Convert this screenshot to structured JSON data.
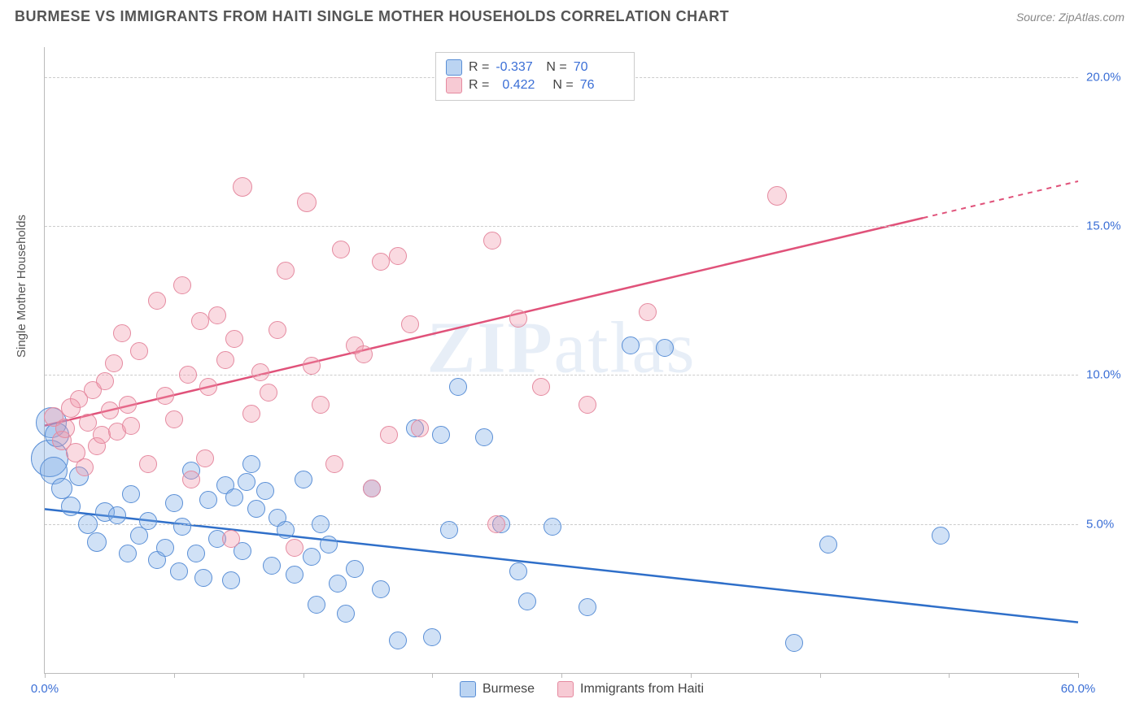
{
  "title": "BURMESE VS IMMIGRANTS FROM HAITI SINGLE MOTHER HOUSEHOLDS CORRELATION CHART",
  "source": "Source: ZipAtlas.com",
  "watermark_bold": "ZIP",
  "watermark_light": "atlas",
  "y_axis_label": "Single Mother Households",
  "chart": {
    "type": "scatter",
    "xlim": [
      0,
      60
    ],
    "ylim": [
      0,
      21
    ],
    "x_ticks": [
      0,
      7.5,
      15,
      22.5,
      30,
      37.5,
      45,
      52.5,
      60
    ],
    "x_tick_labels": {
      "0": "0.0%",
      "60": "60.0%"
    },
    "y_ticks": [
      5,
      10,
      15,
      20
    ],
    "y_tick_labels": {
      "5": "5.0%",
      "10": "10.0%",
      "15": "15.0%",
      "20": "20.0%"
    },
    "background_color": "#ffffff",
    "grid_color": "#cccccc",
    "point_radius": 9,
    "series": [
      {
        "name": "Burmese",
        "color_fill": "rgba(120,170,230,0.35)",
        "color_stroke": "#5a8fd6",
        "line_color": "#2f6fc9",
        "R": "-0.337",
        "N": "70",
        "trend": {
          "x1": 0,
          "y1": 5.5,
          "x2": 60,
          "y2": 1.7,
          "solid_until_x": 60
        },
        "data": [
          [
            0.3,
            7.2,
            22
          ],
          [
            0.4,
            8.4,
            18
          ],
          [
            0.5,
            6.8,
            16
          ],
          [
            0.7,
            8.0,
            14
          ],
          [
            1.0,
            6.2,
            12
          ],
          [
            1.5,
            5.6,
            11
          ],
          [
            2.0,
            6.6,
            11
          ],
          [
            2.5,
            5.0,
            11
          ],
          [
            3.0,
            4.4,
            11
          ],
          [
            3.5,
            5.4,
            11
          ],
          [
            4.2,
            5.3,
            10
          ],
          [
            4.8,
            4.0,
            10
          ],
          [
            5.0,
            6.0,
            10
          ],
          [
            5.5,
            4.6,
            10
          ],
          [
            6.0,
            5.1,
            10
          ],
          [
            6.5,
            3.8,
            10
          ],
          [
            7.0,
            4.2,
            10
          ],
          [
            7.5,
            5.7,
            10
          ],
          [
            7.8,
            3.4,
            10
          ],
          [
            8.0,
            4.9,
            10
          ],
          [
            8.5,
            6.8,
            10
          ],
          [
            8.8,
            4.0,
            10
          ],
          [
            9.2,
            3.2,
            10
          ],
          [
            9.5,
            5.8,
            10
          ],
          [
            10.0,
            4.5,
            10
          ],
          [
            10.5,
            6.3,
            10
          ],
          [
            10.8,
            3.1,
            10
          ],
          [
            11.0,
            5.9,
            10
          ],
          [
            11.5,
            4.1,
            10
          ],
          [
            11.7,
            6.4,
            10
          ],
          [
            12.0,
            7.0,
            10
          ],
          [
            12.3,
            5.5,
            10
          ],
          [
            12.8,
            6.1,
            10
          ],
          [
            13.2,
            3.6,
            10
          ],
          [
            13.5,
            5.2,
            10
          ],
          [
            14.0,
            4.8,
            10
          ],
          [
            14.5,
            3.3,
            10
          ],
          [
            15.0,
            6.5,
            10
          ],
          [
            15.5,
            3.9,
            10
          ],
          [
            15.8,
            2.3,
            10
          ],
          [
            16.0,
            5.0,
            10
          ],
          [
            16.5,
            4.3,
            10
          ],
          [
            17.0,
            3.0,
            10
          ],
          [
            17.5,
            2.0,
            10
          ],
          [
            18.0,
            3.5,
            10
          ],
          [
            19.0,
            6.2,
            10
          ],
          [
            19.5,
            2.8,
            10
          ],
          [
            20.5,
            1.1,
            10
          ],
          [
            21.5,
            8.2,
            10
          ],
          [
            22.5,
            1.2,
            10
          ],
          [
            23.0,
            8.0,
            10
          ],
          [
            23.5,
            4.8,
            10
          ],
          [
            24.0,
            9.6,
            10
          ],
          [
            25.5,
            7.9,
            10
          ],
          [
            26.5,
            5.0,
            10
          ],
          [
            27.5,
            3.4,
            10
          ],
          [
            28.0,
            2.4,
            10
          ],
          [
            29.5,
            4.9,
            10
          ],
          [
            31.5,
            2.2,
            10
          ],
          [
            34.0,
            11.0,
            10
          ],
          [
            36.0,
            10.9,
            10
          ],
          [
            43.5,
            1.0,
            10
          ],
          [
            45.5,
            4.3,
            10
          ],
          [
            52.0,
            4.6,
            10
          ]
        ]
      },
      {
        "name": "Immigrants from Haiti",
        "color_fill": "rgba(240,150,170,0.35)",
        "color_stroke": "#e58aa0",
        "line_color": "#e0527a",
        "R": "0.422",
        "N": "76",
        "trend": {
          "x1": 0,
          "y1": 8.3,
          "x2": 60,
          "y2": 16.5,
          "solid_until_x": 51
        },
        "data": [
          [
            0.5,
            8.6,
            11
          ],
          [
            1.0,
            7.8,
            11
          ],
          [
            1.2,
            8.2,
            11
          ],
          [
            1.5,
            8.9,
            11
          ],
          [
            1.8,
            7.4,
            11
          ],
          [
            2.0,
            9.2,
            10
          ],
          [
            2.3,
            6.9,
            10
          ],
          [
            2.5,
            8.4,
            10
          ],
          [
            2.8,
            9.5,
            10
          ],
          [
            3.0,
            7.6,
            10
          ],
          [
            3.3,
            8.0,
            10
          ],
          [
            3.5,
            9.8,
            10
          ],
          [
            3.8,
            8.8,
            10
          ],
          [
            4.0,
            10.4,
            10
          ],
          [
            4.2,
            8.1,
            10
          ],
          [
            4.5,
            11.4,
            10
          ],
          [
            4.8,
            9.0,
            10
          ],
          [
            5.0,
            8.3,
            10
          ],
          [
            5.5,
            10.8,
            10
          ],
          [
            6.0,
            7.0,
            10
          ],
          [
            6.5,
            12.5,
            10
          ],
          [
            7.0,
            9.3,
            10
          ],
          [
            7.5,
            8.5,
            10
          ],
          [
            8.0,
            13.0,
            10
          ],
          [
            8.3,
            10.0,
            10
          ],
          [
            8.5,
            6.5,
            10
          ],
          [
            9.0,
            11.8,
            10
          ],
          [
            9.3,
            7.2,
            10
          ],
          [
            9.5,
            9.6,
            10
          ],
          [
            10.0,
            12.0,
            10
          ],
          [
            10.5,
            10.5,
            10
          ],
          [
            10.8,
            4.5,
            10
          ],
          [
            11.0,
            11.2,
            10
          ],
          [
            11.5,
            16.3,
            11
          ],
          [
            12.0,
            8.7,
            10
          ],
          [
            12.5,
            10.1,
            10
          ],
          [
            13.0,
            9.4,
            10
          ],
          [
            13.5,
            11.5,
            10
          ],
          [
            14.0,
            13.5,
            10
          ],
          [
            14.5,
            4.2,
            10
          ],
          [
            15.2,
            15.8,
            11
          ],
          [
            15.5,
            10.3,
            10
          ],
          [
            16.0,
            9.0,
            10
          ],
          [
            16.8,
            7.0,
            10
          ],
          [
            17.2,
            14.2,
            10
          ],
          [
            18.0,
            11.0,
            10
          ],
          [
            18.5,
            10.7,
            10
          ],
          [
            19.0,
            6.2,
            10
          ],
          [
            19.5,
            13.8,
            10
          ],
          [
            20.0,
            8.0,
            10
          ],
          [
            20.5,
            14.0,
            10
          ],
          [
            21.2,
            11.7,
            10
          ],
          [
            21.8,
            8.2,
            10
          ],
          [
            26.0,
            14.5,
            10
          ],
          [
            26.2,
            5.0,
            10
          ],
          [
            27.5,
            11.9,
            10
          ],
          [
            28.8,
            9.6,
            10
          ],
          [
            31.5,
            9.0,
            10
          ],
          [
            35.0,
            12.1,
            10
          ],
          [
            42.5,
            16.0,
            11
          ]
        ]
      }
    ]
  },
  "legend_bottom": [
    {
      "swatch": "blue",
      "label": "Burmese"
    },
    {
      "swatch": "pink",
      "label": "Immigrants from Haiti"
    }
  ]
}
